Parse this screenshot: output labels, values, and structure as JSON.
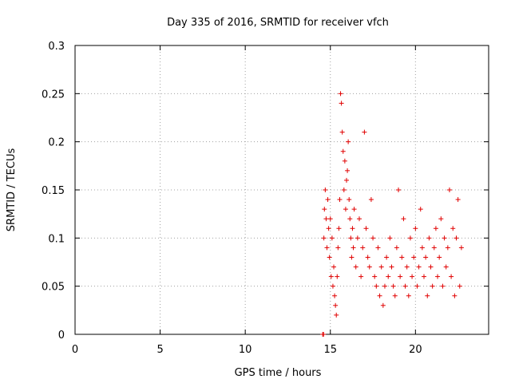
{
  "chart_data": {
    "type": "scatter",
    "title": "Day 335 of 2016, SRMTID for receiver vfch",
    "xlabel": "GPS time / hours",
    "ylabel": "SRMTID / TECUs",
    "xlim": [
      0,
      24.3
    ],
    "ylim": [
      0,
      0.3
    ],
    "xticks": [
      0,
      5,
      10,
      15,
      20
    ],
    "xtick_labels": [
      "0",
      "5",
      "10",
      "15",
      "20"
    ],
    "yticks": [
      0,
      0.05,
      0.1,
      0.15,
      0.2,
      0.25,
      0.3
    ],
    "ytick_labels": [
      "0",
      "0.05",
      "0.1",
      "0.15",
      "0.2",
      "0.25",
      "0.3"
    ],
    "grid": true,
    "series": [
      {
        "name": "SRMTID",
        "marker": "+",
        "color": "#e00000",
        "x": [
          14.55,
          14.6,
          14.65,
          14.62,
          14.7,
          14.75,
          14.8,
          14.85,
          14.9,
          14.95,
          15.0,
          15.05,
          15.1,
          15.15,
          15.2,
          15.25,
          15.3,
          15.35,
          15.4,
          15.45,
          15.5,
          15.55,
          15.6,
          15.65,
          15.7,
          15.75,
          15.8,
          15.85,
          15.9,
          15.95,
          16.0,
          16.05,
          16.1,
          16.15,
          16.2,
          16.25,
          16.3,
          16.35,
          16.4,
          16.5,
          16.6,
          16.7,
          16.8,
          16.9,
          17.0,
          17.1,
          17.2,
          17.3,
          17.4,
          17.5,
          17.6,
          17.7,
          17.8,
          17.9,
          18.0,
          18.1,
          18.2,
          18.3,
          18.4,
          18.5,
          18.6,
          18.7,
          18.8,
          18.9,
          19.0,
          19.1,
          19.2,
          19.3,
          19.4,
          19.5,
          19.6,
          19.7,
          19.8,
          19.9,
          20.0,
          20.1,
          20.2,
          20.3,
          20.4,
          20.5,
          20.6,
          20.7,
          20.8,
          20.9,
          21.0,
          21.1,
          21.2,
          21.3,
          21.4,
          21.5,
          21.6,
          21.7,
          21.8,
          21.9,
          22.0,
          22.1,
          22.2,
          22.3,
          22.4,
          22.5,
          22.6,
          22.7
        ],
        "y": [
          0.0,
          0.0,
          0.13,
          0.1,
          0.15,
          0.12,
          0.09,
          0.14,
          0.11,
          0.08,
          0.12,
          0.06,
          0.1,
          0.05,
          0.07,
          0.04,
          0.03,
          0.02,
          0.06,
          0.09,
          0.11,
          0.14,
          0.25,
          0.24,
          0.21,
          0.19,
          0.15,
          0.18,
          0.13,
          0.16,
          0.17,
          0.2,
          0.14,
          0.12,
          0.1,
          0.08,
          0.11,
          0.09,
          0.13,
          0.07,
          0.1,
          0.12,
          0.06,
          0.09,
          0.21,
          0.11,
          0.08,
          0.07,
          0.14,
          0.1,
          0.06,
          0.05,
          0.09,
          0.04,
          0.07,
          0.03,
          0.05,
          0.08,
          0.06,
          0.1,
          0.07,
          0.05,
          0.04,
          0.09,
          0.15,
          0.06,
          0.08,
          0.12,
          0.05,
          0.07,
          0.04,
          0.1,
          0.06,
          0.08,
          0.11,
          0.05,
          0.07,
          0.13,
          0.09,
          0.06,
          0.08,
          0.04,
          0.1,
          0.07,
          0.05,
          0.09,
          0.11,
          0.06,
          0.08,
          0.12,
          0.05,
          0.1,
          0.07,
          0.09,
          0.15,
          0.06,
          0.11,
          0.04,
          0.1,
          0.14,
          0.05,
          0.09
        ]
      }
    ]
  }
}
